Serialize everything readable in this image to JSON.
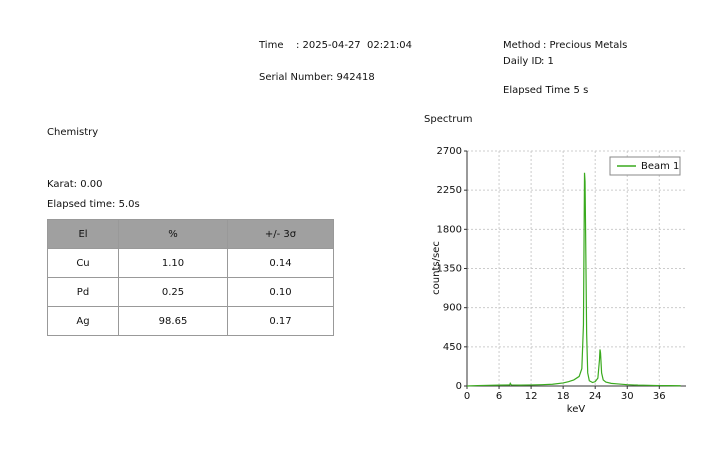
{
  "header": {
    "time_label": "Time",
    "time_value": ": 2025-04-27  02:21:04",
    "serial_label": "Serial Number",
    "serial_value": ": 942418",
    "method_label": "Method",
    "method_value": ": Precious Metals",
    "daily_id_label": "Daily ID",
    "daily_id_value": ": 1",
    "elapsed_label": "Elapsed Time",
    "elapsed_value": ": 5 s"
  },
  "chemistry": {
    "title": "Chemistry",
    "karat": "Karat: 0.00",
    "elapsed": "Elapsed time: 5.0s",
    "table": {
      "columns": [
        "El",
        "%",
        "+/- 3σ"
      ],
      "rows": [
        [
          "Cu",
          "1.10",
          "0.14"
        ],
        [
          "Pd",
          "0.25",
          "0.10"
        ],
        [
          "Ag",
          "98.65",
          "0.17"
        ]
      ]
    }
  },
  "chart_data": {
    "type": "line",
    "title": "Spectrum",
    "x_label": "keV",
    "y_label": "counts/sec",
    "xlim": [
      0,
      41
    ],
    "xticks": [
      0,
      6,
      12,
      18,
      24,
      30,
      36
    ],
    "ylim": [
      0,
      2700
    ],
    "yticks": [
      0,
      450,
      900,
      1350,
      1800,
      2250,
      2700
    ],
    "grid": true,
    "legend": "top-right",
    "x": [
      0,
      2,
      4,
      6,
      8,
      8.1,
      8.3,
      10,
      12,
      14,
      16,
      18,
      19,
      20,
      21,
      21.5,
      21.8,
      22.0,
      22.1,
      22.2,
      22.4,
      22.6,
      22.9,
      23.5,
      24.0,
      24.5,
      24.8,
      24.9,
      25.0,
      25.2,
      25.5,
      26,
      27,
      28,
      30,
      32,
      34,
      36,
      38,
      40
    ],
    "series": [
      {
        "name": "Beam 1",
        "color": "#3aaa1e",
        "values": [
          0,
          5,
          8,
          10,
          12,
          30,
          12,
          10,
          12,
          15,
          20,
          35,
          50,
          70,
          110,
          200,
          700,
          2450,
          2350,
          1800,
          600,
          150,
          60,
          40,
          50,
          90,
          300,
          420,
          380,
          150,
          70,
          45,
          30,
          25,
          15,
          10,
          8,
          5,
          4,
          3
        ]
      }
    ]
  }
}
